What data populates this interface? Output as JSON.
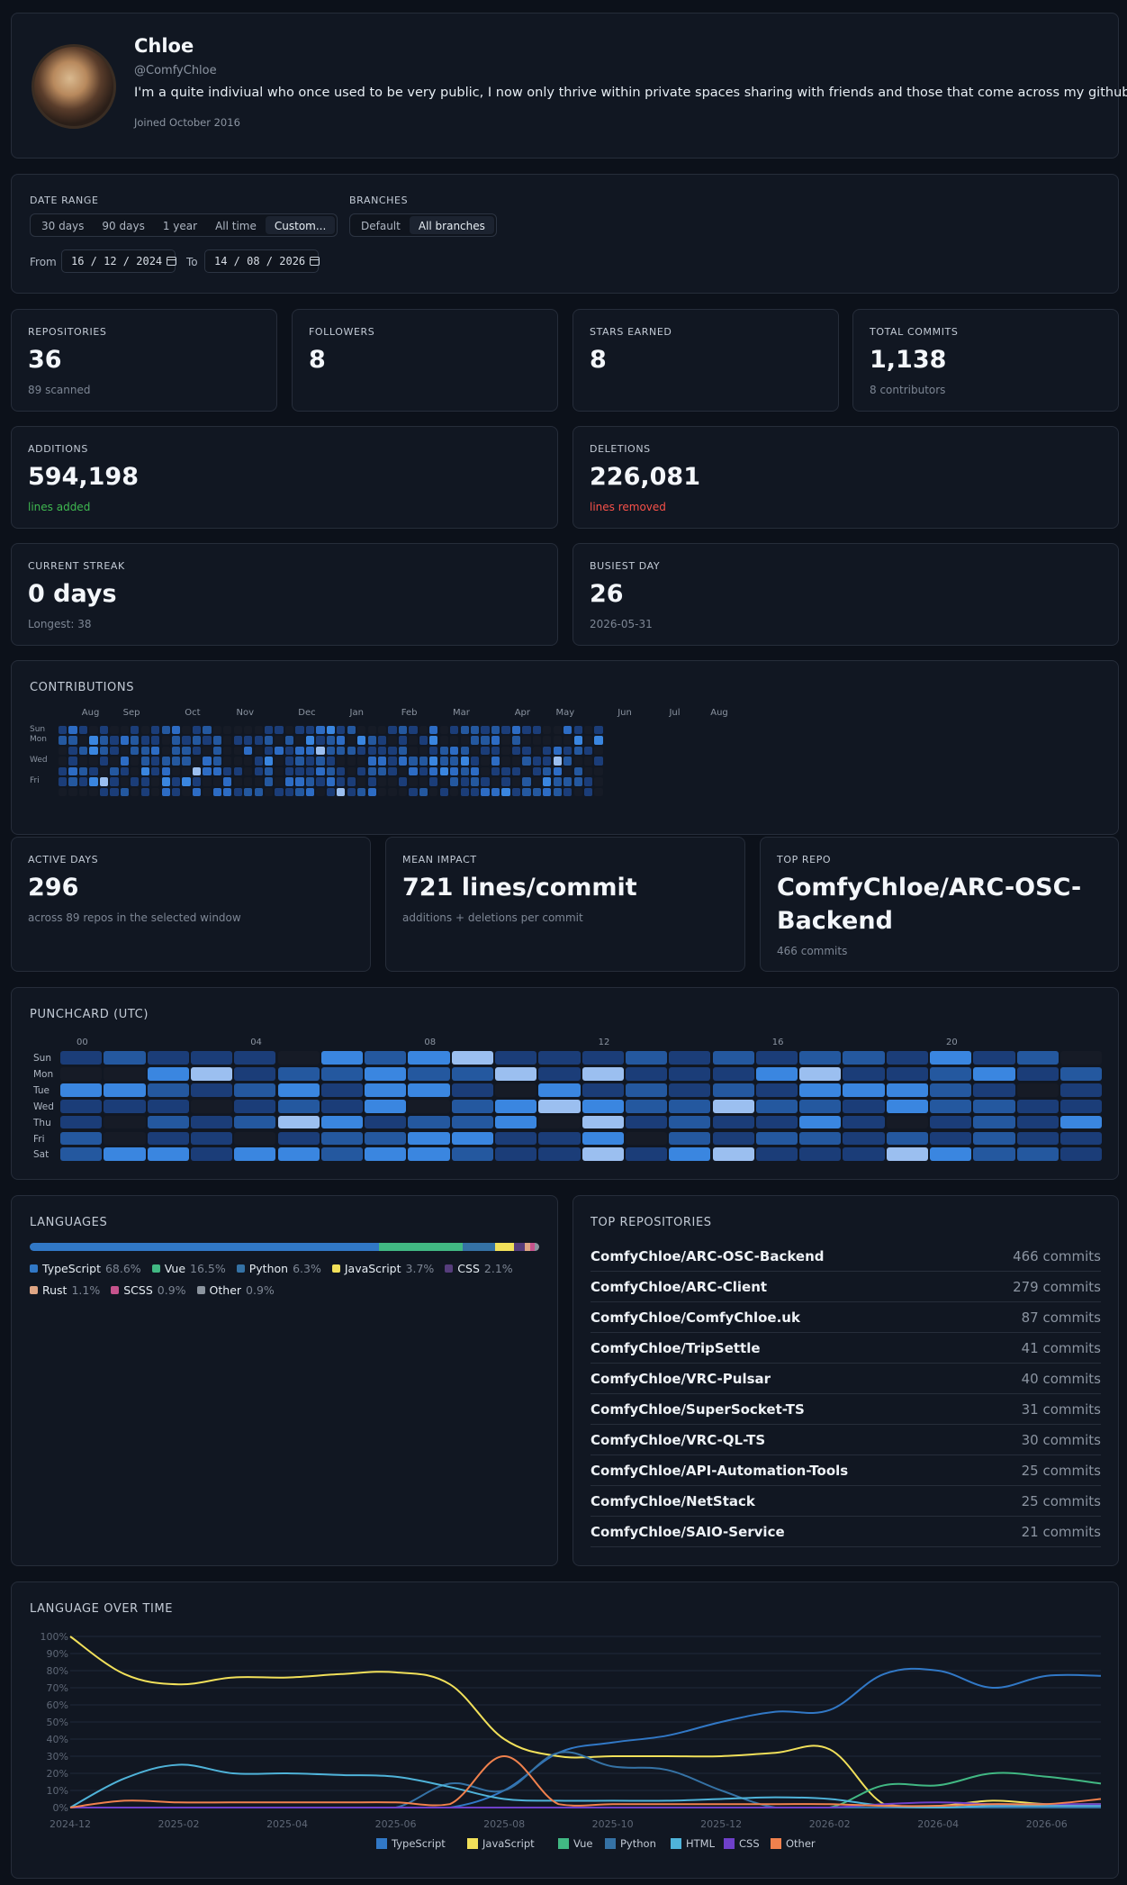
{
  "profile": {
    "name": "Chloe",
    "handle": "@ComfyChloe",
    "bio": "I'm a quite indiviual who once used to be very public, I now only thrive within private spaces sharing with friends and those that come across my github.",
    "joined": "Joined October 2016"
  },
  "filters": {
    "date_range_label": "DATE RANGE",
    "ranges": [
      "30 days",
      "90 days",
      "1 year",
      "All time",
      "Custom..."
    ],
    "active_range": "Custom...",
    "branches_label": "BRANCHES",
    "branches": [
      "Default",
      "All branches"
    ],
    "active_branch": "All branches",
    "from_label": "From",
    "from_value": "16 / 12 / 2024",
    "to_label": "To",
    "to_value": "14 / 08 / 2026"
  },
  "stats": {
    "repositories": {
      "label": "REPOSITORIES",
      "value": "36",
      "sub": "89 scanned"
    },
    "followers": {
      "label": "FOLLOWERS",
      "value": "8"
    },
    "stars": {
      "label": "STARS EARNED",
      "value": "8"
    },
    "commits": {
      "label": "TOTAL COMMITS",
      "value": "1,138",
      "sub": "8 contributors"
    },
    "additions": {
      "label": "ADDITIONS",
      "value": "594,198",
      "sub": "lines added"
    },
    "deletions": {
      "label": "DELETIONS",
      "value": "226,081",
      "sub": "lines removed"
    },
    "streak": {
      "label": "CURRENT STREAK",
      "value": "0 days",
      "sub": "Longest: 38"
    },
    "busiest": {
      "label": "BUSIEST DAY",
      "value": "26",
      "sub": "2026-05-31"
    },
    "active_days": {
      "label": "ACTIVE DAYS",
      "value": "296",
      "sub": "across 89 repos in the selected window"
    },
    "mean_impact": {
      "label": "MEAN IMPACT",
      "value": "721 lines/commit",
      "sub": "additions + deletions per commit"
    },
    "top_repo": {
      "label": "TOP REPO",
      "value_line1": "ComfyChloe/ARC-OSC-",
      "value_line2": "Backend",
      "sub": "466 commits"
    }
  },
  "contributions": {
    "title": "CONTRIBUTIONS",
    "months": [
      "Aug",
      "Sep",
      "Oct",
      "Nov",
      "Dec",
      "Jan",
      "Feb",
      "Mar",
      "Apr",
      "May",
      "Jun",
      "Jul",
      "Aug"
    ],
    "day_labels": [
      "Sun",
      "Mon",
      "",
      "Wed",
      "",
      "Fri",
      ""
    ]
  },
  "punchcard": {
    "title": "PUNCHCARD (UTC)",
    "hour_labels": [
      "00",
      "04",
      "08",
      "12",
      "16",
      "20"
    ],
    "days": [
      "Sun",
      "Mon",
      "Tue",
      "Wed",
      "Thu",
      "Fri",
      "Sat"
    ]
  },
  "languages": {
    "title": "LANGUAGES",
    "items": [
      {
        "name": "TypeScript",
        "pct": "68.6%",
        "value": 68.6,
        "color": "#3178c6"
      },
      {
        "name": "Vue",
        "pct": "16.5%",
        "value": 16.5,
        "color": "#41b883"
      },
      {
        "name": "Python",
        "pct": "6.3%",
        "value": 6.3,
        "color": "#3572a5"
      },
      {
        "name": "JavaScript",
        "pct": "3.7%",
        "value": 3.7,
        "color": "#f1e05a"
      },
      {
        "name": "CSS",
        "pct": "2.1%",
        "value": 2.1,
        "color": "#563d7c"
      },
      {
        "name": "Rust",
        "pct": "1.1%",
        "value": 1.1,
        "color": "#dea584"
      },
      {
        "name": "SCSS",
        "pct": "0.9%",
        "value": 0.9,
        "color": "#c6538c"
      },
      {
        "name": "Other",
        "pct": "0.9%",
        "value": 0.9,
        "color": "#8b949e"
      }
    ]
  },
  "top_repositories": {
    "title": "TOP REPOSITORIES",
    "items": [
      {
        "name": "ComfyChloe/ARC-OSC-Backend",
        "commits": "466 commits"
      },
      {
        "name": "ComfyChloe/ARC-Client",
        "commits": "279 commits"
      },
      {
        "name": "ComfyChloe/ComfyChloe.uk",
        "commits": "87 commits"
      },
      {
        "name": "ComfyChloe/TripSettle",
        "commits": "41 commits"
      },
      {
        "name": "ComfyChloe/VRC-Pulsar",
        "commits": "40 commits"
      },
      {
        "name": "ComfyChloe/SuperSocket-TS",
        "commits": "31 commits"
      },
      {
        "name": "ComfyChloe/VRC-QL-TS",
        "commits": "30 commits"
      },
      {
        "name": "ComfyChloe/API-Automation-Tools",
        "commits": "25 commits"
      },
      {
        "name": "ComfyChloe/NetStack",
        "commits": "25 commits"
      },
      {
        "name": "ComfyChloe/SAIO-Service",
        "commits": "21 commits"
      }
    ]
  },
  "chart_data": {
    "type": "line",
    "title": "LANGUAGE OVER TIME",
    "x": [
      "2024-12",
      "2025-01",
      "2025-02",
      "2025-03",
      "2025-04",
      "2025-05",
      "2025-06",
      "2025-07",
      "2025-08",
      "2025-09",
      "2025-10",
      "2025-11",
      "2025-12",
      "2026-01",
      "2026-02",
      "2026-03",
      "2026-04",
      "2026-05",
      "2026-06",
      "2026-07"
    ],
    "x_tick_labels": [
      "2024-12",
      "2025-02",
      "2025-04",
      "2025-06",
      "2025-08",
      "2025-10",
      "2025-12",
      "2026-02",
      "2026-04",
      "2026-06"
    ],
    "y_tick_labels": [
      "0%",
      "10%",
      "20%",
      "30%",
      "40%",
      "50%",
      "60%",
      "70%",
      "80%",
      "90%",
      "100%"
    ],
    "ylim": [
      0,
      100
    ],
    "grid": true,
    "legend": "bottom",
    "series": [
      {
        "name": "TypeScript",
        "color": "#3178c6",
        "values": [
          0,
          0,
          0,
          0,
          0,
          0,
          0,
          0,
          10,
          32,
          38,
          42,
          50,
          56,
          57,
          78,
          80,
          70,
          77,
          77
        ]
      },
      {
        "name": "JavaScript",
        "color": "#f1e05a",
        "values": [
          100,
          78,
          72,
          76,
          76,
          78,
          79,
          72,
          40,
          30,
          30,
          30,
          30,
          32,
          34,
          2,
          1,
          4,
          2,
          2
        ]
      },
      {
        "name": "Vue",
        "color": "#41b883",
        "values": [
          0,
          0,
          0,
          0,
          0,
          0,
          0,
          0,
          0,
          0,
          0,
          0,
          0,
          0,
          0,
          13,
          13,
          20,
          18,
          14
        ]
      },
      {
        "name": "Python",
        "color": "#3572a5",
        "values": [
          0,
          0,
          0,
          0,
          0,
          0,
          0,
          14,
          10,
          32,
          24,
          22,
          10,
          0,
          0,
          0,
          0,
          0,
          0,
          0
        ]
      },
      {
        "name": "HTML",
        "color": "#4fb3d9",
        "values": [
          0,
          17,
          25,
          20,
          20,
          19,
          18,
          12,
          5,
          4,
          4,
          4,
          5,
          6,
          5,
          1,
          0,
          1,
          1,
          1
        ]
      },
      {
        "name": "CSS",
        "color": "#6e40c9",
        "values": [
          0,
          0,
          0,
          0,
          0,
          0,
          0,
          0,
          0,
          0,
          0,
          0,
          0,
          0,
          0,
          2,
          3,
          2,
          2,
          2
        ]
      },
      {
        "name": "Other",
        "color": "#f0814d",
        "values": [
          0,
          4,
          3,
          3,
          3,
          3,
          3,
          2,
          30,
          2,
          2,
          2,
          2,
          2,
          2,
          1,
          1,
          2,
          2,
          5
        ]
      }
    ]
  }
}
